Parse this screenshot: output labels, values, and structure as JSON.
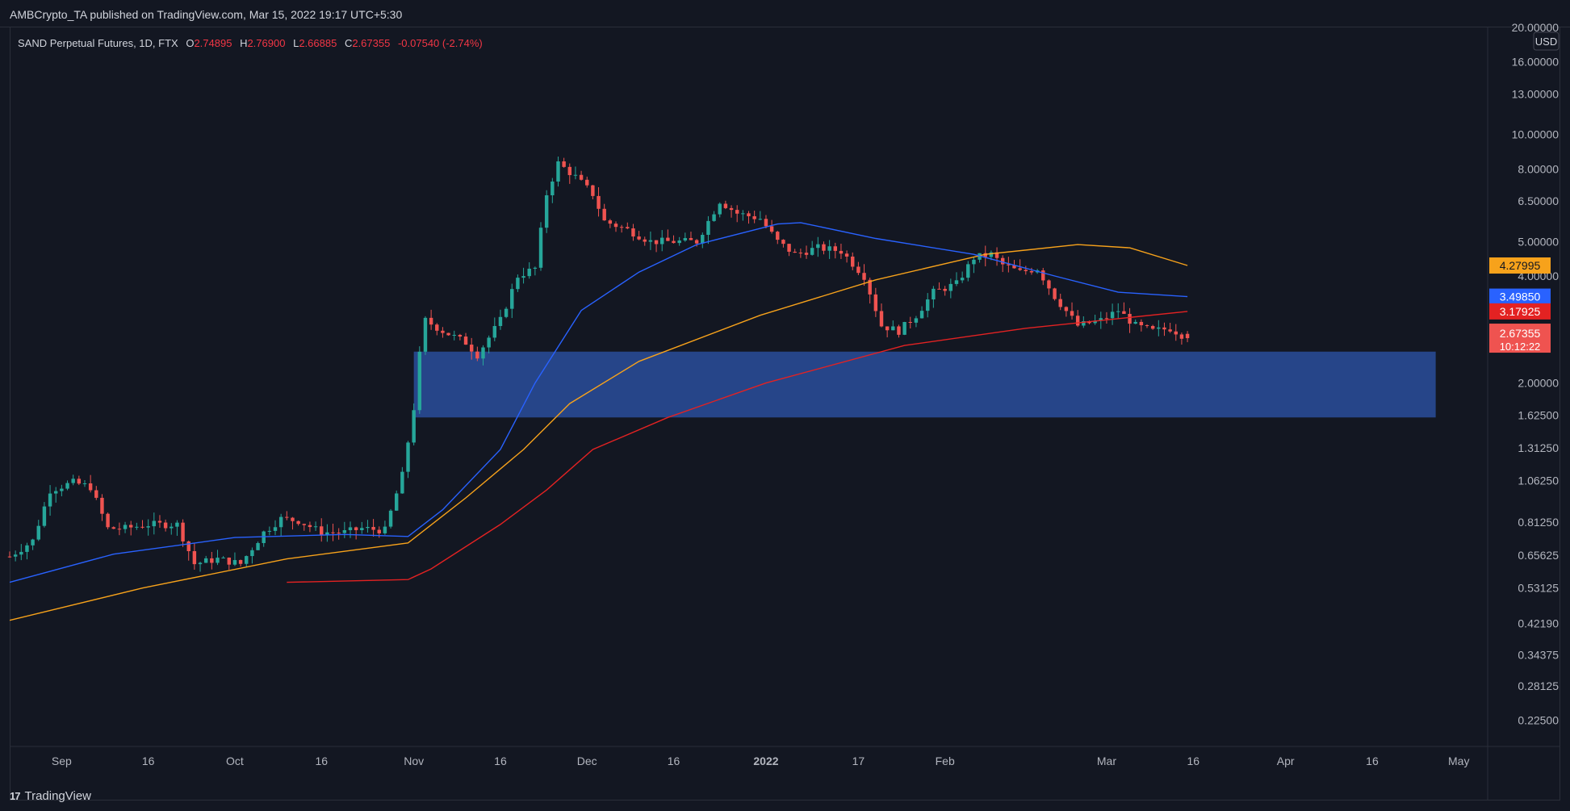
{
  "header": {
    "published": "AMBCrypto_TA published on TradingView.com, Mar 15, 2022 19:17 UTC+5:30"
  },
  "legend": {
    "symbol": "SAND Perpetual Futures, 1D, FTX",
    "o_label": "O",
    "o": "2.74895",
    "h_label": "H",
    "h": "2.76900",
    "l_label": "L",
    "l": "2.66885",
    "c_label": "C",
    "c": "2.67355",
    "change": "-0.07540 (-2.74%)"
  },
  "footer": {
    "brand": "TradingView",
    "mark": "17"
  },
  "colors": {
    "background": "#131722",
    "up": "#26a69a",
    "down": "#ef5350",
    "ma_blue": "#2962ff",
    "ma_orange": "#f7a21b",
    "ma_red": "#e32222",
    "zone": "#2a4d9b"
  },
  "chart_data": {
    "type": "candlestick",
    "scale": "log",
    "currency": "USD",
    "ylim": [
      0.19,
      20.0
    ],
    "y_ticks": [
      "20.00000",
      "16.00000",
      "13.00000",
      "10.00000",
      "8.00000",
      "6.50000",
      "5.00000",
      "4.00000",
      "3.20000",
      "2.50000",
      "2.00000",
      "1.62500",
      "1.31250",
      "1.06250",
      "0.81250",
      "0.65625",
      "0.53125",
      "0.42190",
      "0.34375",
      "0.28125",
      "0.22500"
    ],
    "x_ticks": [
      {
        "label": "Sep",
        "date": "2021-09-01",
        "bold": false
      },
      {
        "label": "16",
        "date": "2021-09-16",
        "bold": false
      },
      {
        "label": "Oct",
        "date": "2021-10-01",
        "bold": false
      },
      {
        "label": "16",
        "date": "2021-10-16",
        "bold": false
      },
      {
        "label": "Nov",
        "date": "2021-11-01",
        "bold": false
      },
      {
        "label": "16",
        "date": "2021-11-16",
        "bold": false
      },
      {
        "label": "Dec",
        "date": "2021-12-01",
        "bold": false
      },
      {
        "label": "16",
        "date": "2021-12-16",
        "bold": false
      },
      {
        "label": "2022",
        "date": "2022-01-01",
        "bold": true
      },
      {
        "label": "17",
        "date": "2022-01-17",
        "bold": false
      },
      {
        "label": "Feb",
        "date": "2022-02-01",
        "bold": false
      },
      {
        "label": "Mar",
        "date": "2022-03-01",
        "bold": false
      },
      {
        "label": "16",
        "date": "2022-03-16",
        "bold": false
      },
      {
        "label": "Apr",
        "date": "2022-04-01",
        "bold": false
      },
      {
        "label": "16",
        "date": "2022-04-16",
        "bold": false
      },
      {
        "label": "May",
        "date": "2022-05-01",
        "bold": false
      }
    ],
    "x_start": "2021-08-23",
    "x_end": "2022-05-06",
    "price_points": [
      [
        "2021-08-23",
        0.65
      ],
      [
        "2021-08-27",
        0.72
      ],
      [
        "2021-08-30",
        1.0
      ],
      [
        "2021-09-03",
        1.05
      ],
      [
        "2021-09-06",
        1.02
      ],
      [
        "2021-09-09",
        0.78
      ],
      [
        "2021-09-12",
        0.78
      ],
      [
        "2021-09-16",
        0.8
      ],
      [
        "2021-09-21",
        0.8
      ],
      [
        "2021-09-24",
        0.62
      ],
      [
        "2021-09-28",
        0.64
      ],
      [
        "2021-10-02",
        0.62
      ],
      [
        "2021-10-06",
        0.76
      ],
      [
        "2021-10-09",
        0.83
      ],
      [
        "2021-10-12",
        0.82
      ],
      [
        "2021-10-16",
        0.76
      ],
      [
        "2021-10-20",
        0.76
      ],
      [
        "2021-10-23",
        0.78
      ],
      [
        "2021-10-27",
        0.77
      ],
      [
        "2021-10-30",
        1.1
      ],
      [
        "2021-11-01",
        1.7
      ],
      [
        "2021-11-02",
        2.4
      ],
      [
        "2021-11-03",
        3.0
      ],
      [
        "2021-11-06",
        2.8
      ],
      [
        "2021-11-10",
        2.6
      ],
      [
        "2021-11-12",
        2.4
      ],
      [
        "2021-11-16",
        3.0
      ],
      [
        "2021-11-19",
        4.0
      ],
      [
        "2021-11-22",
        4.2
      ],
      [
        "2021-11-24",
        6.8
      ],
      [
        "2021-11-26",
        8.3
      ],
      [
        "2021-11-29",
        7.6
      ],
      [
        "2021-12-02",
        6.8
      ],
      [
        "2021-12-04",
        5.7
      ],
      [
        "2021-12-08",
        5.4
      ],
      [
        "2021-12-12",
        5.0
      ],
      [
        "2021-12-16",
        5.0
      ],
      [
        "2021-12-20",
        5.0
      ],
      [
        "2021-12-24",
        6.5
      ],
      [
        "2021-12-27",
        6.0
      ],
      [
        "2021-12-31",
        5.8
      ],
      [
        "2022-01-03",
        5.0
      ],
      [
        "2022-01-06",
        4.6
      ],
      [
        "2022-01-10",
        4.8
      ],
      [
        "2022-01-14",
        4.7
      ],
      [
        "2022-01-18",
        4.0
      ],
      [
        "2022-01-21",
        2.9
      ],
      [
        "2022-01-24",
        2.8
      ],
      [
        "2022-01-27",
        3.1
      ],
      [
        "2022-01-30",
        3.6
      ],
      [
        "2022-02-03",
        3.8
      ],
      [
        "2022-02-06",
        4.5
      ],
      [
        "2022-02-09",
        4.6
      ],
      [
        "2022-02-11",
        4.3
      ],
      [
        "2022-02-14",
        4.1
      ],
      [
        "2022-02-17",
        4.2
      ],
      [
        "2022-02-20",
        3.5
      ],
      [
        "2022-02-24",
        2.9
      ],
      [
        "2022-02-28",
        3.0
      ],
      [
        "2022-03-03",
        3.2
      ],
      [
        "2022-03-06",
        2.9
      ],
      [
        "2022-03-09",
        2.8
      ],
      [
        "2022-03-12",
        2.85
      ],
      [
        "2022-03-15",
        2.67355
      ]
    ],
    "ma_blue": [
      [
        "2021-08-23",
        0.55
      ],
      [
        "2021-09-10",
        0.66
      ],
      [
        "2021-10-01",
        0.735
      ],
      [
        "2021-10-20",
        0.75
      ],
      [
        "2021-10-31",
        0.74
      ],
      [
        "2021-11-06",
        0.88
      ],
      [
        "2021-11-16",
        1.3
      ],
      [
        "2021-11-22",
        2.0
      ],
      [
        "2021-11-30",
        3.2
      ],
      [
        "2021-12-10",
        4.1
      ],
      [
        "2021-12-20",
        4.9
      ],
      [
        "2022-01-03",
        5.6
      ],
      [
        "2022-01-07",
        5.65
      ],
      [
        "2022-01-20",
        5.1
      ],
      [
        "2022-02-06",
        4.6
      ],
      [
        "2022-02-20",
        4.0
      ],
      [
        "2022-03-03",
        3.6
      ],
      [
        "2022-03-15",
        3.4985
      ]
    ],
    "ma_orange": [
      [
        "2021-08-23",
        0.43
      ],
      [
        "2021-09-15",
        0.53
      ],
      [
        "2021-10-10",
        0.64
      ],
      [
        "2021-10-31",
        0.71
      ],
      [
        "2021-11-10",
        0.95
      ],
      [
        "2021-11-20",
        1.3
      ],
      [
        "2021-11-28",
        1.75
      ],
      [
        "2021-12-10",
        2.3
      ],
      [
        "2021-12-31",
        3.1
      ],
      [
        "2022-01-20",
        3.9
      ],
      [
        "2022-02-08",
        4.6
      ],
      [
        "2022-02-24",
        4.9
      ],
      [
        "2022-03-05",
        4.8
      ],
      [
        "2022-03-15",
        4.27995
      ]
    ],
    "ma_red": [
      [
        "2021-10-10",
        0.55
      ],
      [
        "2021-10-31",
        0.56
      ],
      [
        "2021-11-04",
        0.6
      ],
      [
        "2021-11-16",
        0.8
      ],
      [
        "2021-11-24",
        1.0
      ],
      [
        "2021-12-02",
        1.3
      ],
      [
        "2021-12-15",
        1.6
      ],
      [
        "2022-01-01",
        2.0
      ],
      [
        "2022-01-25",
        2.55
      ],
      [
        "2022-02-15",
        2.85
      ],
      [
        "2022-03-15",
        3.17925
      ]
    ],
    "zone": {
      "x_from": "2021-11-01",
      "x_to": "2022-04-27",
      "y_low": 1.6,
      "y_high": 2.45
    },
    "price_tags": [
      {
        "label": "4.27995",
        "value": 4.27995,
        "bg": "#f7a21b",
        "fg": "#131722"
      },
      {
        "label": "3.49850",
        "value": 3.4985,
        "bg": "#2962ff",
        "fg": "#ffffff"
      },
      {
        "label": "3.17925",
        "value": 3.17925,
        "bg": "#e32222",
        "fg": "#ffffff"
      },
      {
        "label": "2.67355",
        "value": 2.67355,
        "bg": "#ef5350",
        "fg": "#ffffff",
        "sub": "10:12:22"
      }
    ]
  }
}
